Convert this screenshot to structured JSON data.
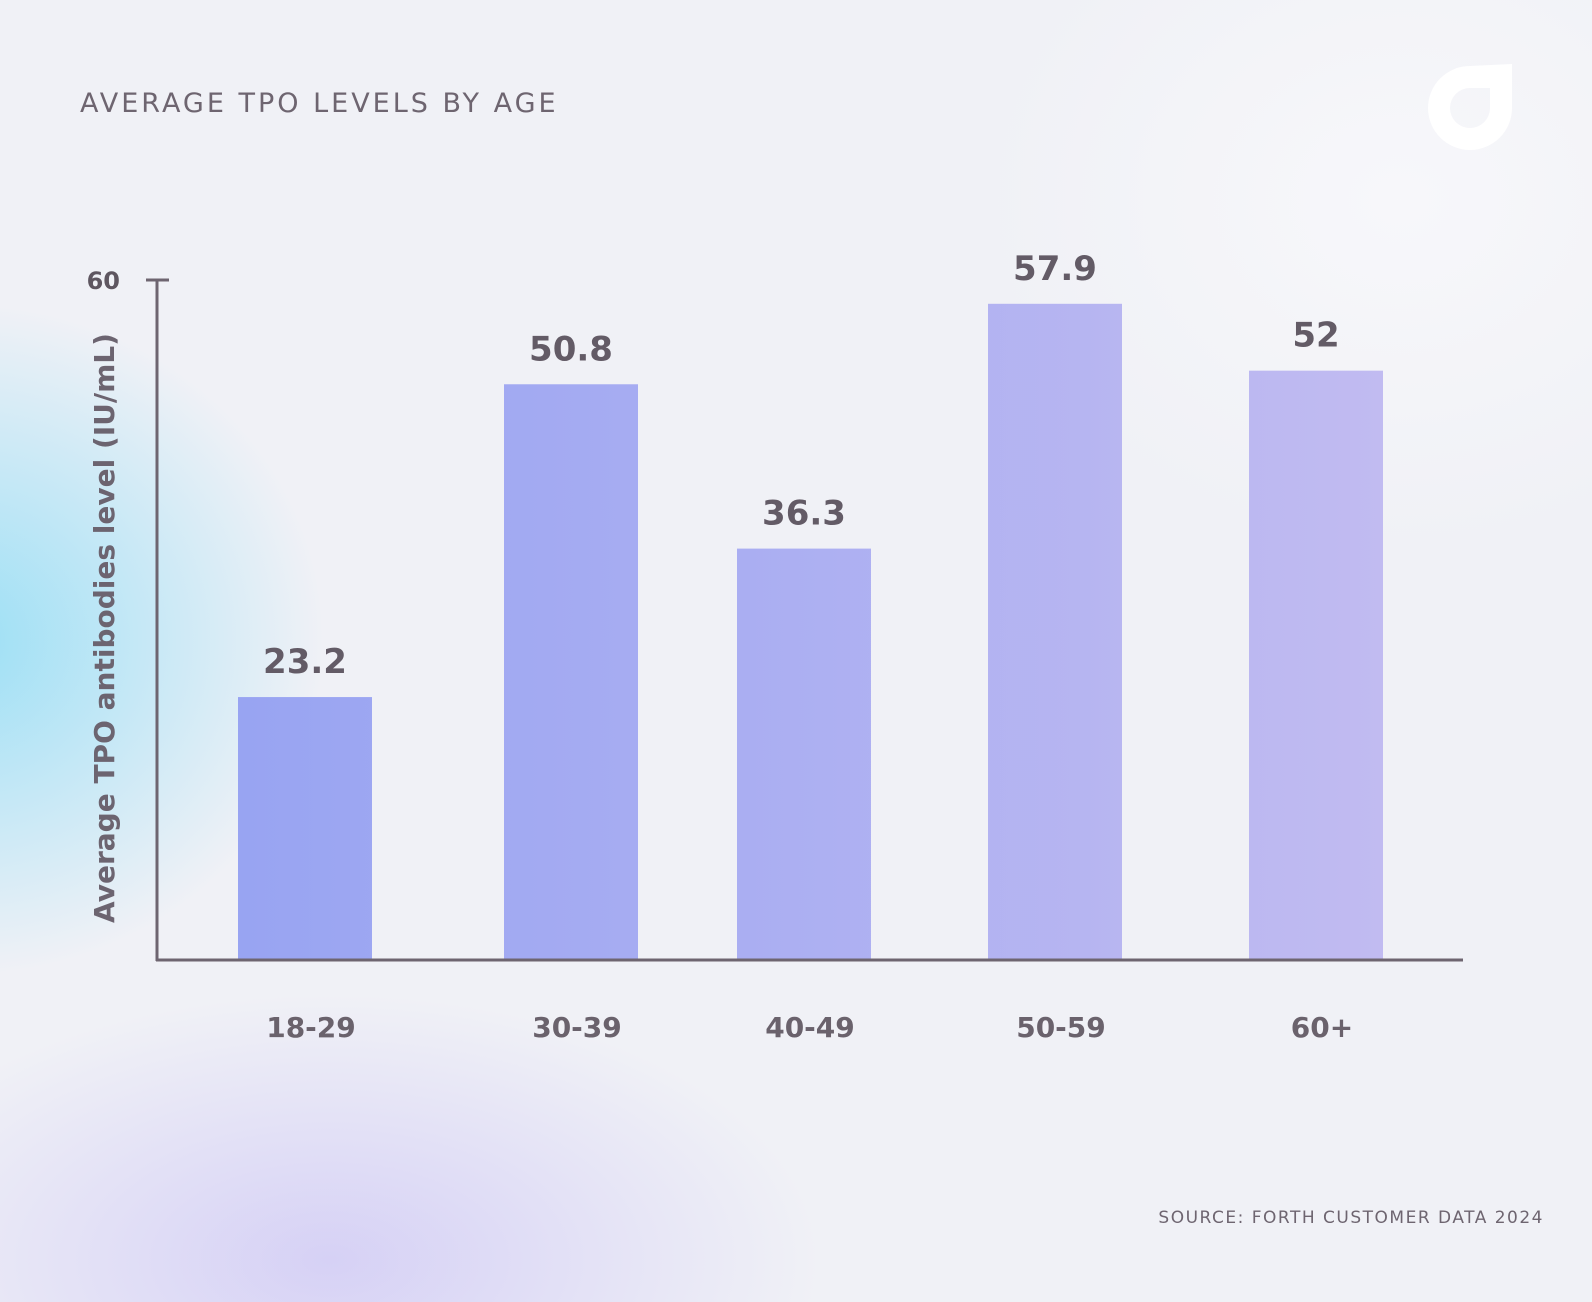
{
  "title": "AVERAGE TPO LEVELS BY AGE",
  "source": "SOURCE: FORTH CUSTOMER DATA 2024",
  "logo_icon": "forth-logo-icon",
  "colors": {
    "bar_start": "#98a4f2",
    "bar_end": "#c1bbf1",
    "axis": "#6e6570",
    "text": "#6e6570"
  },
  "chart_data": {
    "type": "bar",
    "title": "AVERAGE TPO LEVELS BY AGE",
    "xlabel": "",
    "ylabel": "Average TPO antibodies level  (IU/mL)",
    "ylim": [
      0,
      60
    ],
    "yticks": [
      "60"
    ],
    "categories": [
      "18-29",
      "30-39",
      "40-49",
      "50-59",
      "60+"
    ],
    "values": [
      23.2,
      50.8,
      36.3,
      57.9,
      52
    ],
    "value_labels": [
      "23.2",
      "50.8",
      "36.3",
      "57.9",
      "52"
    ],
    "grid": false,
    "legend": "none"
  }
}
